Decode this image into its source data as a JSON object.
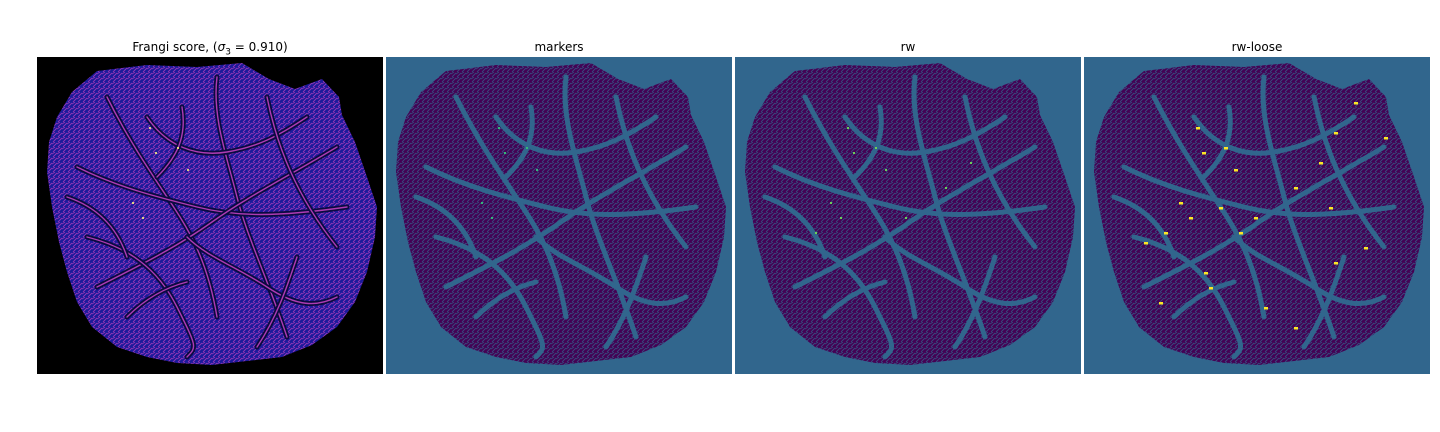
{
  "panels": [
    {
      "title_prefix": "Frangi score, (",
      "title_math": "σ",
      "title_sub": "3",
      "title_suffix": " = 0.910)",
      "background": "#000000",
      "tissue": "#1a1a9a",
      "vessel": "#c040c0",
      "highlight": "#ffff80"
    },
    {
      "title": "markers",
      "background": "#31668d",
      "tissue": "#440154",
      "vessel": "#31668d",
      "highlight": "#35b779"
    },
    {
      "title": "rw",
      "background": "#31668d",
      "tissue": "#440154",
      "vessel": "#31668d",
      "highlight": "#6ece58"
    },
    {
      "title": "rw-loose",
      "background": "#31668d",
      "tissue": "#440154",
      "vessel": "#31668d",
      "highlight": "#fde725"
    }
  ]
}
